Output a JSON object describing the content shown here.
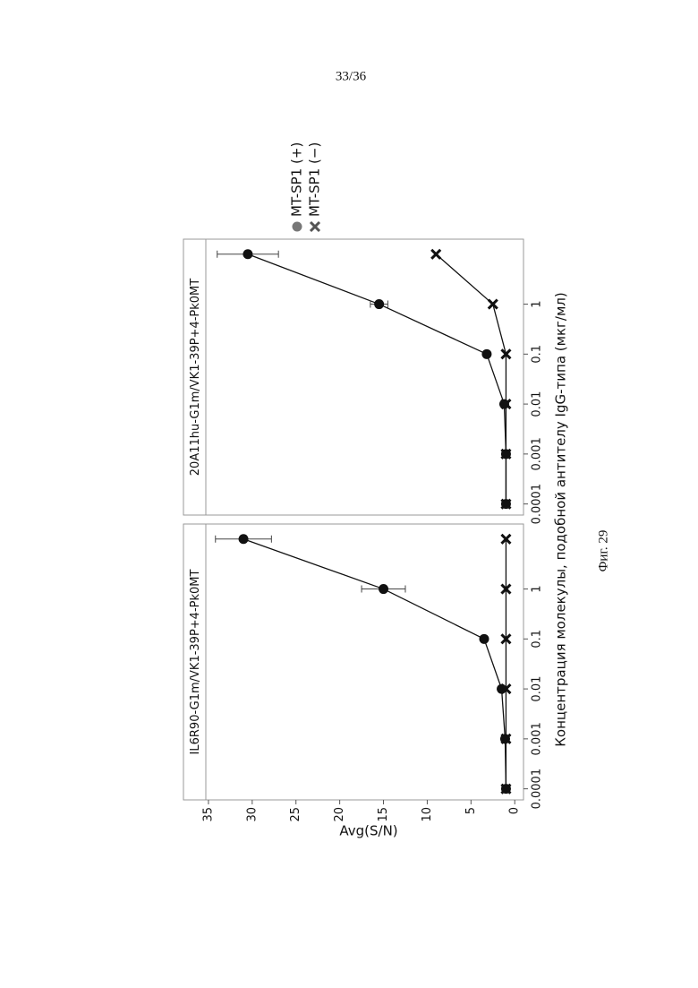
{
  "page_number": "33/36",
  "caption": "Фиг. 29",
  "chart_data": {
    "type": "line",
    "log_x": true,
    "grid": false,
    "xlabel": "Концентрация молекулы, подобной антителу IgG-типа (мкг/мл)",
    "ylabel": "Avg(S/N)",
    "x": [
      0.0001,
      0.001,
      0.01,
      0.1,
      1,
      10
    ],
    "xlim": [
      6e-05,
      20
    ],
    "xticks": [
      0.0001,
      0.001,
      0.01,
      0.1,
      1
    ],
    "ylim": [
      -1,
      35.3
    ],
    "yticks": [
      0,
      5,
      10,
      15,
      20,
      25,
      30,
      35
    ],
    "series": [
      {
        "name": "MT-SP1 (+)",
        "color": "#111111",
        "marker": "circle"
      },
      {
        "name": "MT-SP1 (−)",
        "color": "#111111",
        "marker": "cross"
      }
    ],
    "panels": [
      {
        "title": "IL6R90-G1m/VK1-39P+4-Pk0MT",
        "series": [
          {
            "values": [
              1.0,
              1.1,
              1.5,
              3.5,
              15,
              31
            ],
            "errors": [
              null,
              null,
              null,
              null,
              2.5,
              3.2
            ]
          },
          {
            "values": [
              1,
              1,
              1,
              1,
              1,
              1
            ]
          }
        ]
      },
      {
        "title": "20A11hu-G1m/VK1-39P+4-Pk0MT",
        "series": [
          {
            "values": [
              1.0,
              1.0,
              1.2,
              3.2,
              15.5,
              30.5
            ],
            "errors": [
              null,
              null,
              null,
              null,
              1.0,
              3.5
            ]
          },
          {
            "values": [
              1,
              1,
              1,
              1,
              2.5,
              9
            ]
          }
        ]
      }
    ]
  }
}
